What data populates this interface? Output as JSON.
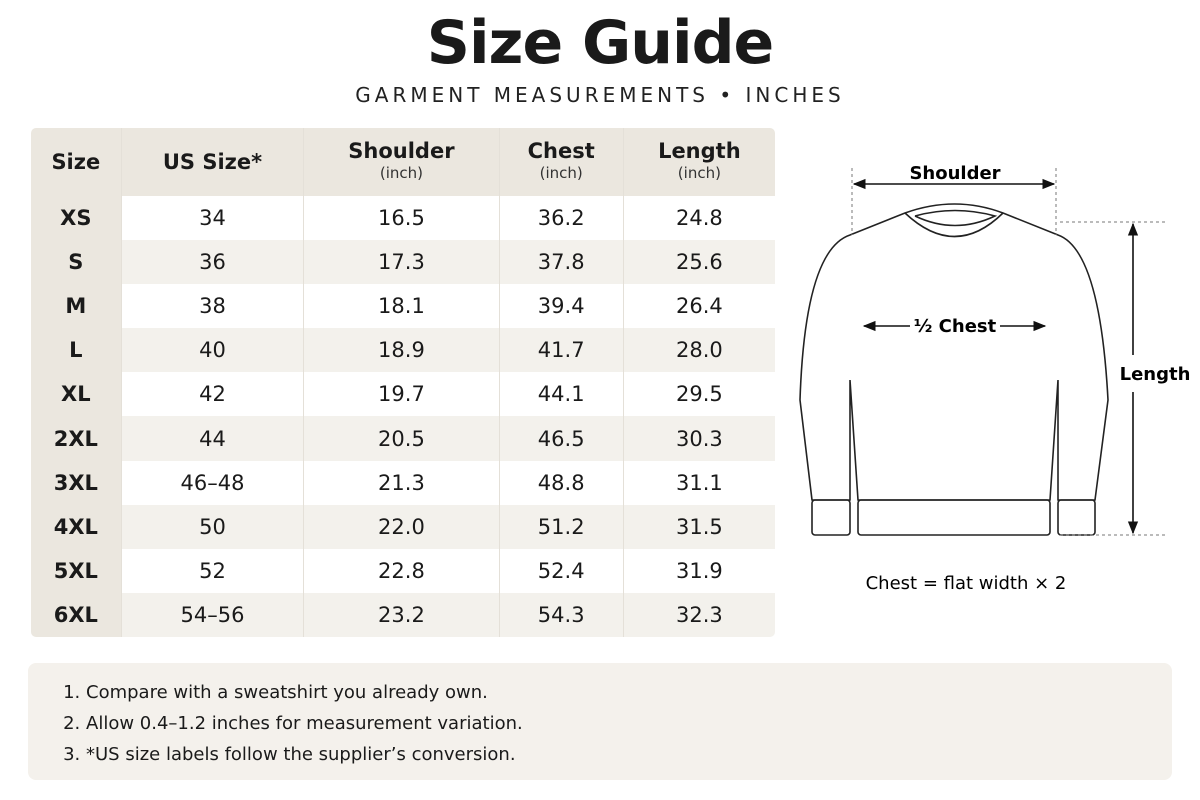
{
  "header": {
    "title": "Size Guide",
    "subtitle": "GARMENT MEASUREMENTS • INCHES"
  },
  "table": {
    "columns": [
      {
        "name": "Size"
      },
      {
        "name": "US Size*"
      },
      {
        "name": "Shoulder",
        "unit": "(inch)"
      },
      {
        "name": "Chest",
        "unit": "(inch)"
      },
      {
        "name": "Length",
        "unit": "(inch)"
      }
    ],
    "rows": [
      [
        "XS",
        "34",
        "16.5",
        "36.2",
        "24.8"
      ],
      [
        "S",
        "36",
        "17.3",
        "37.8",
        "25.6"
      ],
      [
        "M",
        "38",
        "18.1",
        "39.4",
        "26.4"
      ],
      [
        "L",
        "40",
        "18.9",
        "41.7",
        "28.0"
      ],
      [
        "XL",
        "42",
        "19.7",
        "44.1",
        "29.5"
      ],
      [
        "2XL",
        "44",
        "20.5",
        "46.5",
        "30.3"
      ],
      [
        "3XL",
        "46–48",
        "21.3",
        "48.8",
        "31.1"
      ],
      [
        "4XL",
        "50",
        "22.0",
        "51.2",
        "31.5"
      ],
      [
        "5XL",
        "52",
        "22.8",
        "52.4",
        "31.9"
      ],
      [
        "6XL",
        "54–56",
        "23.2",
        "54.3",
        "32.3"
      ]
    ]
  },
  "diagram": {
    "shoulder": "Shoulder",
    "half_chest": "½ Chest",
    "length": "Length",
    "note": "Chest = flat width × 2"
  },
  "notes": [
    "Compare with a sweatshirt you already own.",
    "Allow 0.4–1.2 inches for measurement variation.",
    "*US size labels follow the supplier’s conversion."
  ]
}
